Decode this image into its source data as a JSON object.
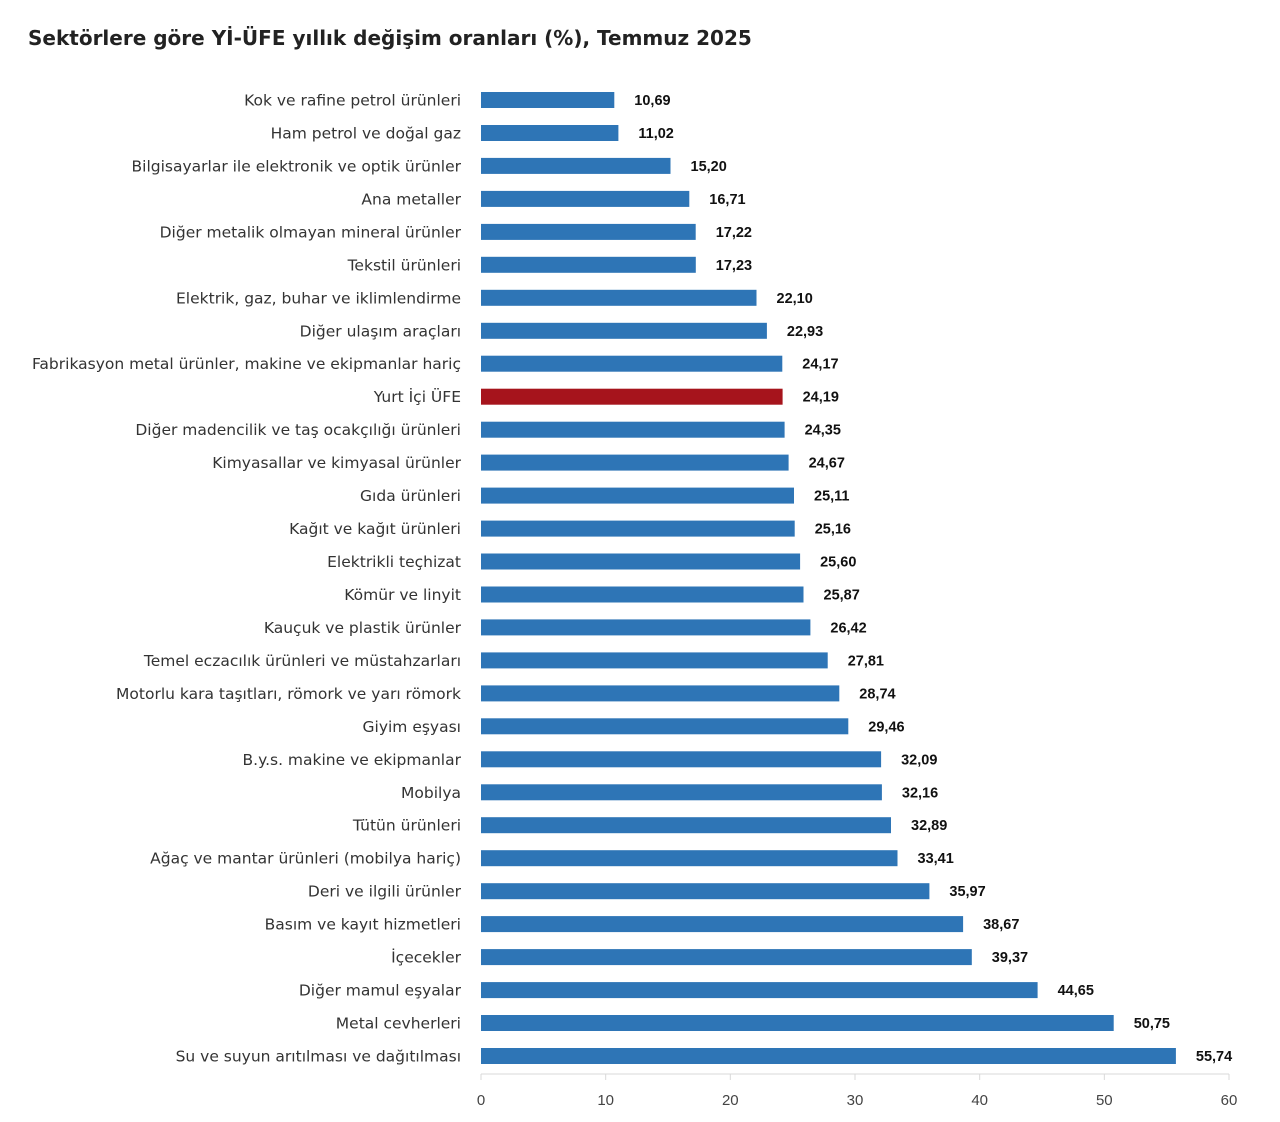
{
  "chart_data": {
    "type": "bar",
    "orientation": "horizontal",
    "title": "Sektörlere göre Yİ-ÜFE yıllık değişim oranları (%), Temmuz 2025",
    "categories": [
      "Kok ve rafine petrol ürünleri",
      "Ham petrol ve doğal gaz",
      "Bilgisayarlar ile elektronik ve optik ürünler",
      "Ana metaller",
      "Diğer metalik olmayan mineral ürünler",
      "Tekstil ürünleri",
      "Elektrik, gaz, buhar ve iklimlendirme",
      "Diğer ulaşım araçları",
      "Fabrikasyon metal ürünler, makine ve ekipmanlar hariç",
      "Yurt İçi ÜFE",
      "Diğer madencilik ve taş ocakçılığı ürünleri",
      "Kimyasallar ve kimyasal ürünler",
      "Gıda ürünleri",
      "Kağıt ve kağıt ürünleri",
      "Elektrikli teçhizat",
      "Kömür ve linyit",
      "Kauçuk ve plastik ürünler",
      "Temel eczacılık ürünleri ve müstahzarları",
      "Motorlu kara taşıtları, römork ve yarı römork",
      "Giyim eşyası",
      "B.y.s. makine ve ekipmanlar",
      "Mobilya",
      "Tütün ürünleri",
      "Ağaç ve mantar ürünleri (mobilya hariç)",
      "Deri ve ilgili ürünler",
      "Basım ve kayıt hizmetleri",
      "İçecekler",
      "Diğer mamul eşyalar",
      "Metal cevherleri",
      "Su ve suyun arıtılması ve dağıtılması"
    ],
    "values": [
      10.69,
      11.02,
      15.2,
      16.71,
      17.22,
      17.23,
      22.1,
      22.93,
      24.17,
      24.19,
      24.35,
      24.67,
      25.11,
      25.16,
      25.6,
      25.87,
      26.42,
      27.81,
      28.74,
      29.46,
      32.09,
      32.16,
      32.89,
      33.41,
      35.97,
      38.67,
      39.37,
      44.65,
      50.75,
      55.74
    ],
    "value_labels": [
      "10,69",
      "11,02",
      "15,20",
      "16,71",
      "17,22",
      "17,23",
      "22,10",
      "22,93",
      "24,17",
      "24,19",
      "24,35",
      "24,67",
      "25,11",
      "25,16",
      "25,60",
      "25,87",
      "26,42",
      "27,81",
      "28,74",
      "29,46",
      "32,09",
      "32,16",
      "32,89",
      "33,41",
      "35,97",
      "38,67",
      "39,37",
      "44,65",
      "50,75",
      "55,74"
    ],
    "highlight_category": "Yurt İçi ÜFE",
    "xlabel": "",
    "ylabel": "",
    "xlim": [
      0,
      60
    ],
    "xticks": [
      0,
      10,
      20,
      30,
      40,
      50,
      60
    ],
    "grid": false,
    "legend": "none",
    "colors": {
      "bar": "#2e75b6",
      "highlight": "#a6141c"
    }
  }
}
